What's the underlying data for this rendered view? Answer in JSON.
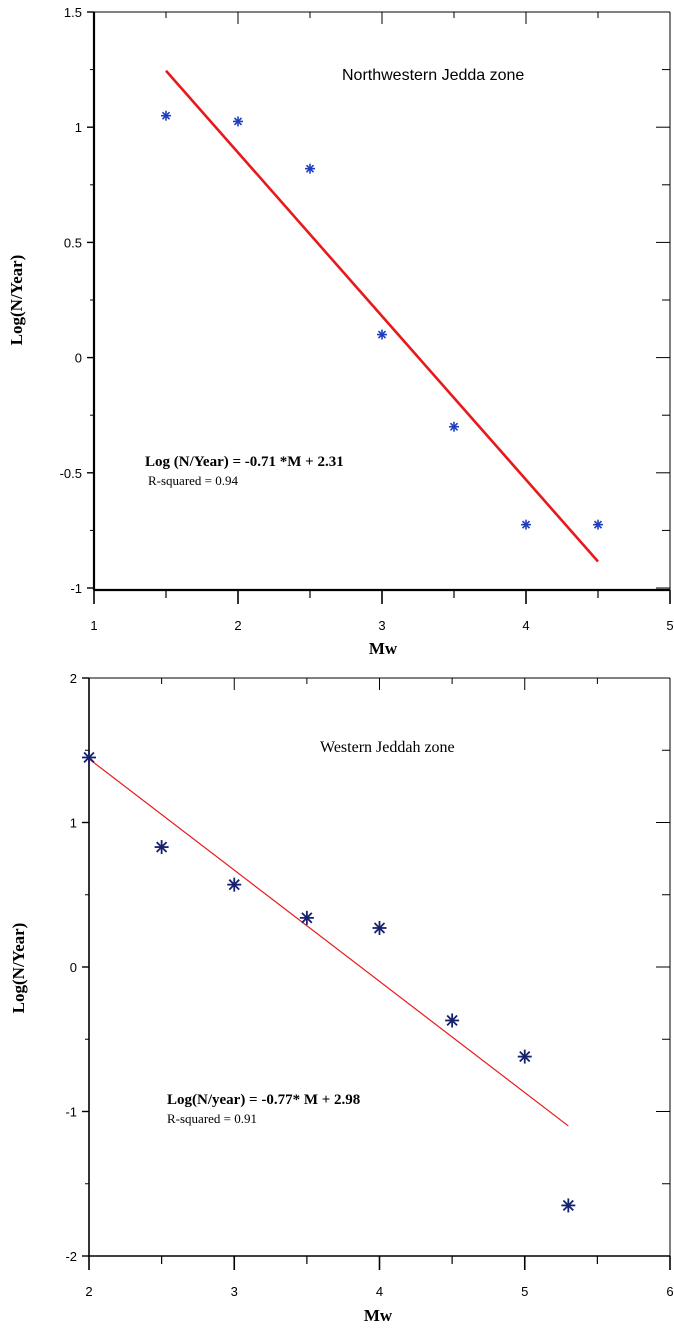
{
  "chart_data": [
    {
      "type": "scatter",
      "title": "Northwestern Jedda zone",
      "xlabel": "Mw",
      "ylabel": "Log(N/Year)",
      "xlim": [
        1,
        5
      ],
      "ylim": [
        -1,
        1.5
      ],
      "x_ticks": [
        "1",
        "2",
        "3",
        "4",
        "5"
      ],
      "y_ticks": [
        "-1",
        "-0.5",
        "0",
        "0.5",
        "1",
        "1.5"
      ],
      "x_tick_values": [
        1,
        2,
        3,
        4,
        5
      ],
      "y_tick_values": [
        -1,
        -0.5,
        0,
        0.5,
        1,
        1.5
      ],
      "series": [
        {
          "x": [
            1.5,
            2.0,
            2.5,
            3.0,
            3.5,
            4.0,
            4.5
          ],
          "y": [
            1.05,
            1.025,
            0.82,
            0.1,
            -0.3,
            -0.725,
            -0.725
          ],
          "marker": "asterisk",
          "color": "#1f3fbf"
        }
      ],
      "fit_line": {
        "x": [
          1.5,
          4.5
        ],
        "y": [
          1.245,
          -0.885
        ],
        "color": "#e8191b"
      },
      "equation": "Log (N/Year) = -0.71 *M + 2.31",
      "r_squared": "R-squared = 0.94"
    },
    {
      "type": "scatter",
      "title": "Western Jeddah zone",
      "xlabel": "Mw",
      "ylabel": "Log(N/Year)",
      "xlim": [
        2,
        6
      ],
      "ylim": [
        -2,
        2
      ],
      "x_ticks": [
        "2",
        "3",
        "4",
        "5",
        "6"
      ],
      "y_ticks": [
        "-2",
        "-1",
        "0",
        "1",
        "2"
      ],
      "x_tick_values": [
        2,
        3,
        4,
        5,
        6
      ],
      "y_tick_values": [
        -2,
        -1,
        0,
        1,
        2
      ],
      "series": [
        {
          "x": [
            2.0,
            2.5,
            3.0,
            3.5,
            4.0,
            4.5,
            5.0,
            5.3
          ],
          "y": [
            1.45,
            0.83,
            0.57,
            0.34,
            0.27,
            -0.37,
            -0.62,
            -1.65
          ],
          "marker": "asterisk",
          "color": "#16226e"
        }
      ],
      "fit_line": {
        "x": [
          2.0,
          5.3
        ],
        "y": [
          1.44,
          -1.1
        ],
        "color": "#e8191b"
      },
      "equation": "Log(N/year) = -0.77* M + 2.98",
      "r_squared": "R-squared = 0.91"
    }
  ]
}
